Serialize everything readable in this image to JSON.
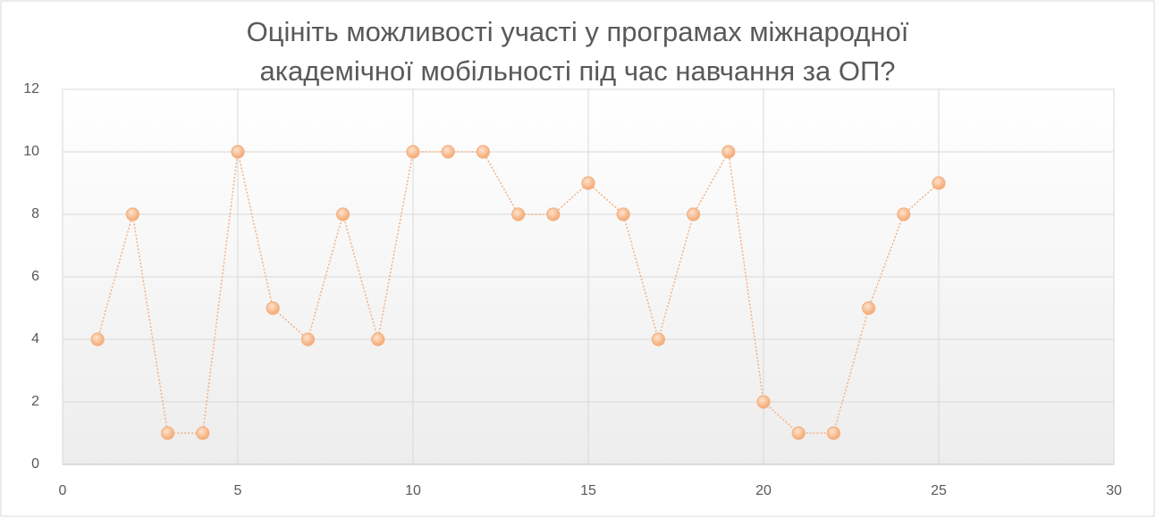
{
  "chart_data": {
    "type": "scatter",
    "title": "Оцініть можливості участі у програмах міжнародної академічної мобільності під час навчання за ОП?",
    "x": [
      1,
      2,
      3,
      4,
      5,
      6,
      7,
      8,
      9,
      10,
      11,
      12,
      13,
      14,
      15,
      16,
      17,
      18,
      19,
      20,
      21,
      22,
      23,
      24,
      25
    ],
    "values": [
      4,
      8,
      1,
      1,
      10,
      5,
      4,
      8,
      4,
      10,
      10,
      10,
      8,
      8,
      9,
      8,
      4,
      8,
      10,
      2,
      1,
      1,
      5,
      8,
      9
    ],
    "color": "#f4b183",
    "xlim": [
      0,
      30
    ],
    "xticks": [
      0,
      5,
      10,
      15,
      20,
      25,
      30
    ],
    "ylim": [
      0,
      12
    ],
    "yticks": [
      0,
      2,
      4,
      6,
      8,
      10,
      12
    ],
    "grid": true
  }
}
